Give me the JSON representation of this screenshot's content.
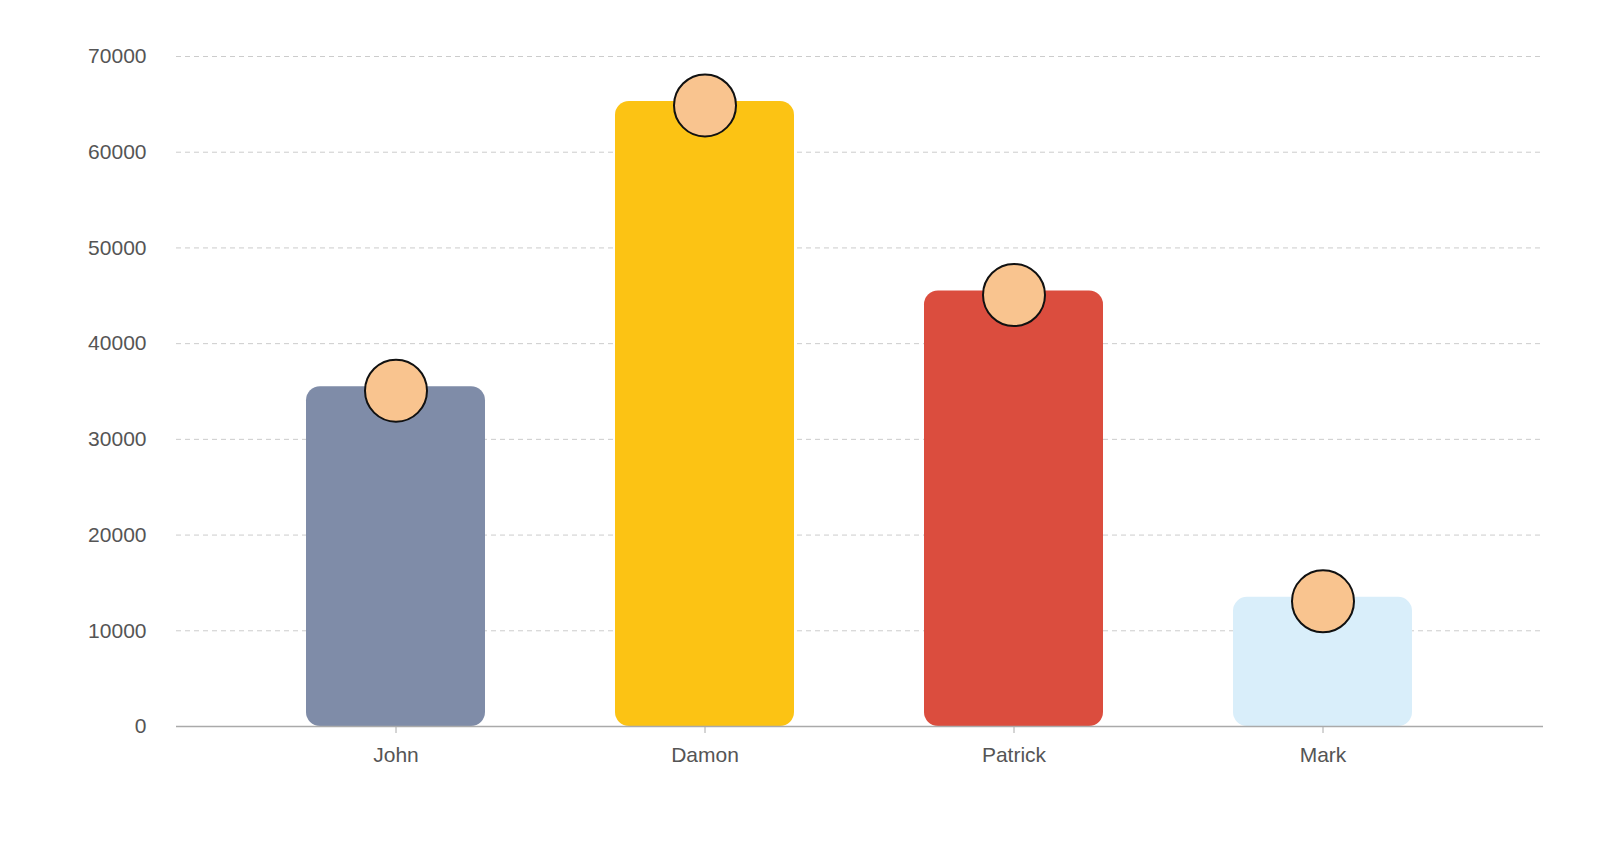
{
  "chart_data": {
    "type": "bar",
    "categories": [
      "John",
      "Damon",
      "Patrick",
      "Mark"
    ],
    "values": [
      35500,
      65300,
      45500,
      13500
    ],
    "colors": [
      "#7f8ca8",
      "#fcc314",
      "#db4d3e",
      "#d9eefa"
    ],
    "ylim": [
      0,
      70000
    ],
    "yticks": [
      0,
      10000,
      20000,
      30000,
      40000,
      50000,
      60000,
      70000
    ],
    "grid": true
  }
}
